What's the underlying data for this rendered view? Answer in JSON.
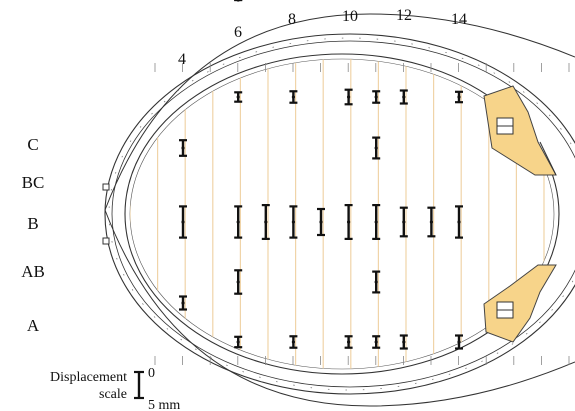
{
  "frame_labels": [
    "4",
    "6",
    "8",
    "10",
    "12",
    "14"
  ],
  "row_labels": [
    "C",
    "BC",
    "B",
    "AB",
    "A"
  ],
  "scale": {
    "title": "Displacement",
    "subtitle": "scale",
    "zero_label": "0",
    "max_label": "5 mm"
  },
  "colors": {
    "hull_outline": "#333333",
    "frame_lines": "#f0d4a8",
    "bars": "#111111",
    "fitting_fill": "#f7d48a",
    "fitting_stroke": "#444444"
  },
  "measurements": [
    {
      "frame": "4",
      "row": "C",
      "displacement_mm": 3.0
    },
    {
      "frame": "4",
      "row": "A",
      "displacement_mm": 2.5
    },
    {
      "frame": "4",
      "row": "B",
      "displacement_mm": 6.0
    },
    {
      "frame": "6",
      "row": "C+",
      "displacement_mm": 1.8
    },
    {
      "frame": "6",
      "row": "C-",
      "displacement_mm": 4.5
    },
    {
      "frame": "6",
      "row": "B",
      "displacement_mm": 6.0
    },
    {
      "frame": "6",
      "row": "AB",
      "displacement_mm": 4.5
    },
    {
      "frame": "6",
      "row": "A-",
      "displacement_mm": 2.0
    },
    {
      "frame": "7",
      "row": "B",
      "displacement_mm": 6.5
    },
    {
      "frame": "8",
      "row": "C+",
      "displacement_mm": 2.2
    },
    {
      "frame": "8",
      "row": "B",
      "displacement_mm": 6.0
    },
    {
      "frame": "8",
      "row": "A-",
      "displacement_mm": 2.2
    },
    {
      "frame": "9",
      "row": "B",
      "displacement_mm": 5.0
    },
    {
      "frame": "10",
      "row": "C+",
      "displacement_mm": 2.8
    },
    {
      "frame": "10",
      "row": "B",
      "displacement_mm": 6.5
    },
    {
      "frame": "10",
      "row": "A-",
      "displacement_mm": 2.2
    },
    {
      "frame": "11",
      "row": "C+",
      "displacement_mm": 2.2
    },
    {
      "frame": "11",
      "row": "C",
      "displacement_mm": 4.0
    },
    {
      "frame": "11",
      "row": "B",
      "displacement_mm": 6.5
    },
    {
      "frame": "11",
      "row": "AB",
      "displacement_mm": 4.0
    },
    {
      "frame": "11",
      "row": "A-",
      "displacement_mm": 2.2
    },
    {
      "frame": "12",
      "row": "C+",
      "displacement_mm": 2.5
    },
    {
      "frame": "12",
      "row": "B",
      "displacement_mm": 5.5
    },
    {
      "frame": "12",
      "row": "A-",
      "displacement_mm": 2.5
    },
    {
      "frame": "13",
      "row": "B",
      "displacement_mm": 5.5
    },
    {
      "frame": "14",
      "row": "C+",
      "displacement_mm": 2.0
    },
    {
      "frame": "14",
      "row": "B",
      "displacement_mm": 6.0
    },
    {
      "frame": "14",
      "row": "A-",
      "displacement_mm": 2.5
    }
  ]
}
